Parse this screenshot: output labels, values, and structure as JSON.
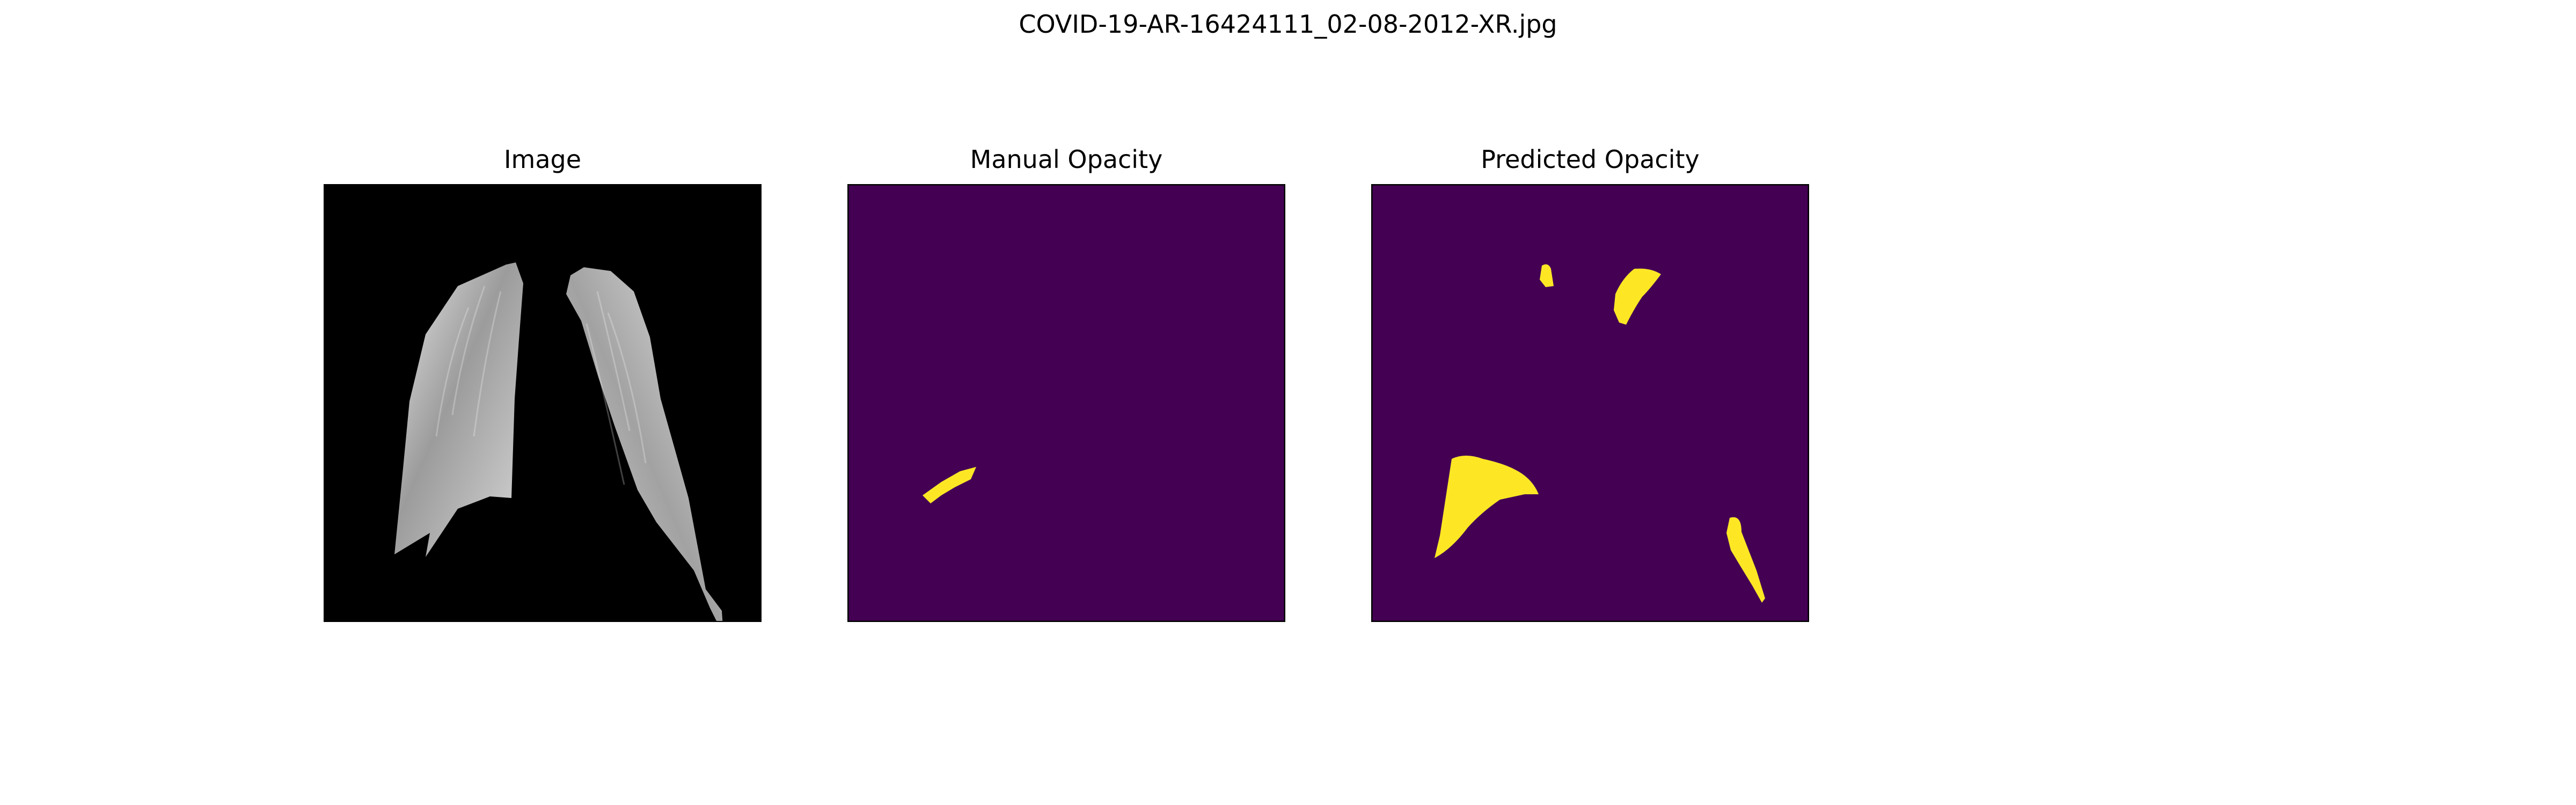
{
  "figure": {
    "title": "COVID-19-AR-16424111_02-08-2012-XR.jpg"
  },
  "panels": [
    {
      "title": "Image"
    },
    {
      "title": "Manual Opacity"
    },
    {
      "title": "Predicted Opacity"
    }
  ],
  "colors": {
    "background": "#ffffff",
    "xray_background": "#000000",
    "mask_background": "#440154",
    "mask_foreground": "#fde725",
    "frame": "#000000"
  }
}
